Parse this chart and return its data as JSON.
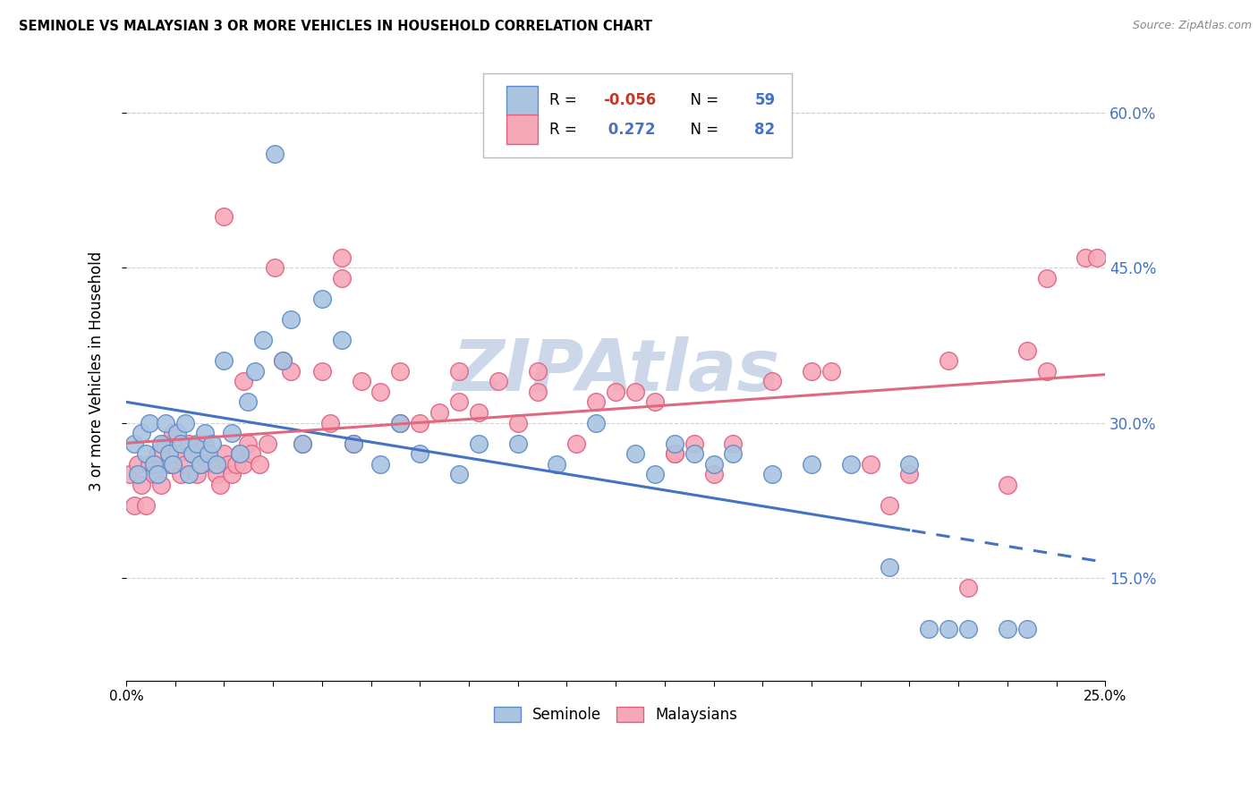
{
  "title": "SEMINOLE VS MALAYSIAN 3 OR MORE VEHICLES IN HOUSEHOLD CORRELATION CHART",
  "source": "Source: ZipAtlas.com",
  "xlabel_seminole": "Seminole",
  "xlabel_malaysians": "Malaysians",
  "ylabel": "3 or more Vehicles in Household",
  "xlim": [
    0.0,
    25.0
  ],
  "ylim": [
    5.0,
    65.0
  ],
  "x_ticks_major": [
    0.0,
    12.5,
    25.0
  ],
  "x_ticks_minor": [
    0.0,
    1.25,
    2.5,
    3.75,
    5.0,
    6.25,
    7.5,
    8.75,
    10.0,
    11.25,
    12.5,
    13.75,
    15.0,
    16.25,
    17.5,
    18.75,
    20.0,
    21.25,
    22.5,
    23.75,
    25.0
  ],
  "y_ticks_grid": [
    15.0,
    30.0,
    45.0,
    60.0
  ],
  "y_ticks_right": [
    15.0,
    30.0,
    45.0,
    60.0
  ],
  "seminole_color": "#aac4e0",
  "malaysian_color": "#f5a8b8",
  "seminole_edge_color": "#5b8bc9",
  "malaysian_edge_color": "#e06080",
  "seminole_line_color": "#4472c4",
  "malaysian_line_color": "#e06880",
  "watermark": "ZIPAtlas",
  "watermark_color": "#ccd8ea",
  "background_color": "#ffffff",
  "seminole_x": [
    0.2,
    0.3,
    0.4,
    0.5,
    0.6,
    0.7,
    0.8,
    0.9,
    1.0,
    1.1,
    1.2,
    1.3,
    1.4,
    1.5,
    1.6,
    1.7,
    1.8,
    1.9,
    2.0,
    2.1,
    2.2,
    2.3,
    2.5,
    2.7,
    2.9,
    3.1,
    3.3,
    3.5,
    3.8,
    4.0,
    4.2,
    4.5,
    5.0,
    5.5,
    5.8,
    6.5,
    7.0,
    7.5,
    8.5,
    9.0,
    10.0,
    11.0,
    12.0,
    13.5,
    14.5,
    15.5,
    16.5,
    17.5,
    18.5,
    19.5,
    20.5,
    21.0,
    21.5,
    22.5,
    23.0,
    13.0,
    14.0,
    15.0,
    20.0
  ],
  "seminole_y": [
    28.0,
    25.0,
    29.0,
    27.0,
    30.0,
    26.0,
    25.0,
    28.0,
    30.0,
    27.0,
    26.0,
    29.0,
    28.0,
    30.0,
    25.0,
    27.0,
    28.0,
    26.0,
    29.0,
    27.0,
    28.0,
    26.0,
    36.0,
    29.0,
    27.0,
    32.0,
    35.0,
    38.0,
    56.0,
    36.0,
    40.0,
    28.0,
    42.0,
    38.0,
    28.0,
    26.0,
    30.0,
    27.0,
    25.0,
    28.0,
    28.0,
    26.0,
    30.0,
    25.0,
    27.0,
    27.0,
    25.0,
    26.0,
    26.0,
    16.0,
    10.0,
    10.0,
    10.0,
    10.0,
    10.0,
    27.0,
    28.0,
    26.0,
    26.0
  ],
  "malaysian_x": [
    0.1,
    0.2,
    0.3,
    0.4,
    0.5,
    0.6,
    0.7,
    0.8,
    0.9,
    1.0,
    1.1,
    1.2,
    1.3,
    1.4,
    1.5,
    1.6,
    1.7,
    1.8,
    1.9,
    2.0,
    2.1,
    2.2,
    2.3,
    2.4,
    2.5,
    2.6,
    2.7,
    2.8,
    2.9,
    3.0,
    3.1,
    3.2,
    3.4,
    3.6,
    3.8,
    4.0,
    4.2,
    4.5,
    5.0,
    5.2,
    5.5,
    5.8,
    6.0,
    6.5,
    7.0,
    7.5,
    8.0,
    8.5,
    9.0,
    9.5,
    10.0,
    10.5,
    11.5,
    12.0,
    12.5,
    13.0,
    13.5,
    14.0,
    14.5,
    15.5,
    16.5,
    17.5,
    18.0,
    19.0,
    20.0,
    21.5,
    22.5,
    23.5,
    24.5,
    5.5,
    7.0,
    8.5,
    2.5,
    3.0,
    14.0,
    15.0,
    19.5,
    21.0,
    23.0,
    24.8,
    23.5,
    10.5
  ],
  "malaysian_y": [
    25.0,
    22.0,
    26.0,
    24.0,
    22.0,
    26.0,
    25.0,
    27.0,
    24.0,
    28.0,
    26.0,
    29.0,
    27.0,
    25.0,
    26.0,
    28.0,
    27.0,
    25.0,
    26.0,
    28.0,
    27.0,
    26.0,
    25.0,
    24.0,
    27.0,
    26.0,
    25.0,
    26.0,
    27.0,
    26.0,
    28.0,
    27.0,
    26.0,
    28.0,
    45.0,
    36.0,
    35.0,
    28.0,
    35.0,
    30.0,
    46.0,
    28.0,
    34.0,
    33.0,
    30.0,
    30.0,
    31.0,
    32.0,
    31.0,
    34.0,
    30.0,
    33.0,
    28.0,
    32.0,
    33.0,
    33.0,
    32.0,
    27.0,
    28.0,
    28.0,
    34.0,
    35.0,
    35.0,
    26.0,
    25.0,
    14.0,
    24.0,
    44.0,
    46.0,
    44.0,
    35.0,
    35.0,
    50.0,
    34.0,
    27.0,
    25.0,
    22.0,
    36.0,
    37.0,
    46.0,
    35.0,
    35.0
  ]
}
